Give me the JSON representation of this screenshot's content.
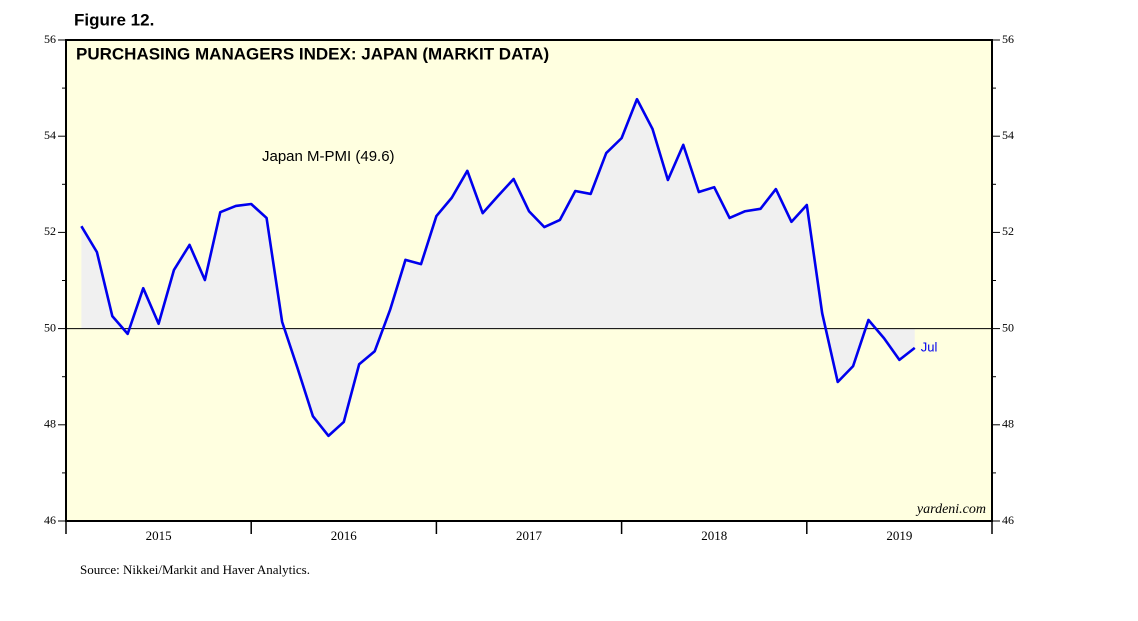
{
  "chart_data": {
    "type": "line",
    "figure_label": "Figure 12.",
    "title": "PURCHASING MANAGERS INDEX: JAPAN (MARKIT DATA)",
    "annotation": "Japan M-PMI (49.6)",
    "end_label": "Jul",
    "watermark": "yardeni.com",
    "source": "Source: Nikkei/Markit and Haver Analytics.",
    "x": [
      2015.083,
      2015.167,
      2015.25,
      2015.333,
      2015.417,
      2015.5,
      2015.583,
      2015.667,
      2015.75,
      2015.833,
      2015.917,
      2016.0,
      2016.083,
      2016.167,
      2016.25,
      2016.333,
      2016.417,
      2016.5,
      2016.583,
      2016.667,
      2016.75,
      2016.833,
      2016.917,
      2017.0,
      2017.083,
      2017.167,
      2017.25,
      2017.333,
      2017.417,
      2017.5,
      2017.583,
      2017.667,
      2017.75,
      2017.833,
      2017.917,
      2018.0,
      2018.083,
      2018.167,
      2018.25,
      2018.333,
      2018.417,
      2018.5,
      2018.583,
      2018.667,
      2018.75,
      2018.833,
      2018.917,
      2019.0,
      2019.083,
      2019.167,
      2019.25,
      2019.333,
      2019.417,
      2019.5,
      2019.583
    ],
    "series": [
      {
        "name": "Japan M-PMI",
        "color": "#0000ee",
        "values": [
          52.13,
          51.59,
          50.26,
          49.89,
          50.84,
          50.1,
          51.22,
          51.74,
          51.01,
          52.42,
          52.55,
          52.59,
          52.3,
          50.14,
          49.18,
          48.18,
          47.77,
          48.06,
          49.26,
          49.53,
          50.39,
          51.43,
          51.34,
          52.34,
          52.72,
          53.28,
          52.4,
          52.76,
          53.11,
          52.44,
          52.11,
          52.26,
          52.86,
          52.8,
          53.65,
          53.96,
          54.77,
          54.15,
          53.09,
          53.82,
          52.84,
          52.94,
          52.3,
          52.44,
          52.49,
          52.9,
          52.22,
          52.57,
          50.32,
          48.89,
          49.22,
          50.18,
          49.8,
          49.35,
          49.6
        ]
      }
    ],
    "xlim": [
      2015,
      2020
    ],
    "xticks": [
      2015,
      2016,
      2017,
      2018,
      2019,
      2020
    ],
    "year_labels": [
      {
        "value": 2015.5,
        "label": "2015"
      },
      {
        "value": 2016.5,
        "label": "2016"
      },
      {
        "value": 2017.5,
        "label": "2017"
      },
      {
        "value": 2018.5,
        "label": "2018"
      },
      {
        "value": 2019.5,
        "label": "2019"
      }
    ],
    "ylim": [
      46,
      56
    ],
    "yticks": [
      46,
      48,
      50,
      52,
      54,
      56
    ],
    "yminor": [
      47,
      49,
      51,
      53,
      55
    ],
    "reference_line": 50,
    "background": "#ffffe0",
    "area_color": "#f0f0f0"
  }
}
